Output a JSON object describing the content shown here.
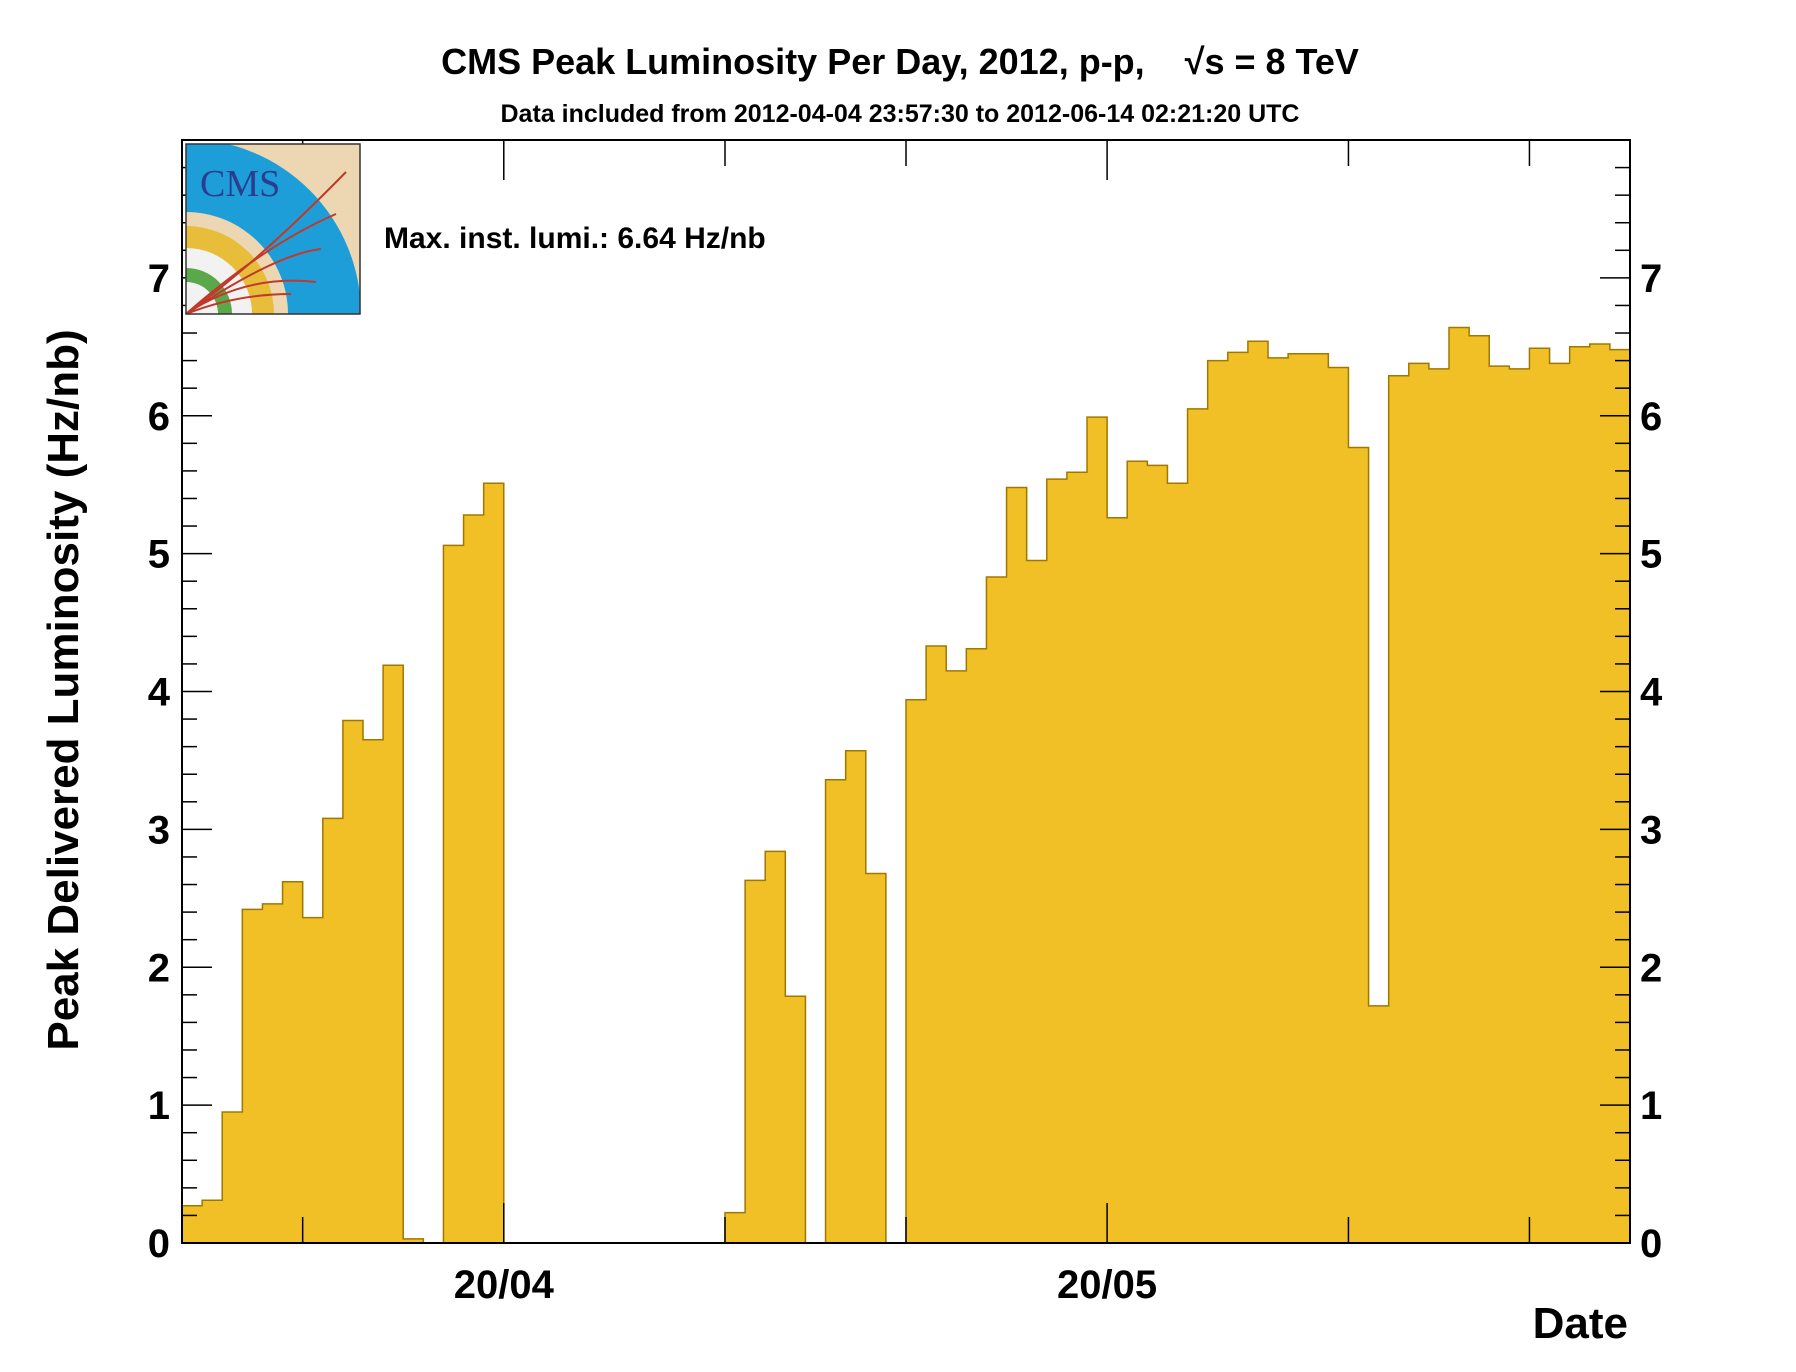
{
  "chart_data": {
    "type": "bar",
    "title": "CMS Peak Luminosity Per Day, 2012, p-p,",
    "title_energy": "√s = 8 TeV",
    "subtitle": "Data included from 2012-04-04 23:57:30 to 2012-06-14 02:21:20 UTC",
    "annotation": "Max. inst. lumi.: 6.64 Hz/nb",
    "xlabel": "Date",
    "ylabel": "Peak Delivered Luminosity (Hz/nb)",
    "ylim": [
      0,
      8
    ],
    "y_ticks": [
      "0",
      "1",
      "2",
      "3",
      "4",
      "5",
      "6",
      "7"
    ],
    "x_ticks": [
      "20/04",
      "20/05"
    ],
    "x_start": "2012-04-04",
    "bar_color": "#f0c026",
    "bar_edge_color": "#a07800",
    "values": [
      0.27,
      0.31,
      0.95,
      2.42,
      2.46,
      2.62,
      2.36,
      3.08,
      3.79,
      3.65,
      4.19,
      0.03,
      0,
      5.06,
      5.28,
      5.51,
      0,
      0,
      0,
      0,
      0,
      0,
      0,
      0,
      0,
      0,
      0,
      0.22,
      2.63,
      2.84,
      1.79,
      0,
      3.36,
      3.57,
      2.68,
      0,
      3.94,
      4.33,
      4.15,
      4.31,
      4.83,
      5.48,
      4.95,
      5.54,
      5.59,
      5.99,
      5.26,
      5.67,
      5.64,
      5.51,
      6.05,
      6.4,
      6.46,
      6.54,
      6.42,
      6.45,
      6.45,
      6.35,
      5.77,
      1.72,
      6.29,
      6.38,
      6.34,
      6.64,
      6.58,
      6.36,
      6.34,
      6.49,
      6.38,
      6.5,
      6.52,
      6.48
    ]
  }
}
